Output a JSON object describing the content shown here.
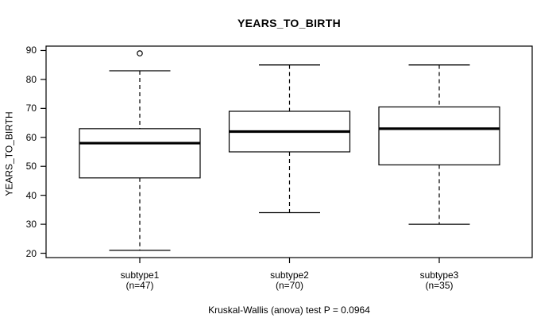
{
  "chart_data": {
    "type": "boxplot",
    "title": "YEARS_TO_BIRTH",
    "ylabel": "YEARS_TO_BIRTH",
    "xlabel": "",
    "caption": "Kruskal-Wallis (anova) test P = 0.0964",
    "p_value": 0.0964,
    "ylim": [
      18.5,
      91.5
    ],
    "yticks": [
      20,
      30,
      40,
      50,
      60,
      70,
      80,
      90
    ],
    "grid": false,
    "legend": "none",
    "groups": [
      {
        "label": "subtype1",
        "sublabel": "(n=47)",
        "n": 47,
        "stats": {
          "whisker_low": 21,
          "q1": 46,
          "median": 58,
          "q3": 63,
          "whisker_high": 83
        },
        "outliers": [
          89
        ]
      },
      {
        "label": "subtype2",
        "sublabel": "(n=70)",
        "n": 70,
        "stats": {
          "whisker_low": 34,
          "q1": 55,
          "median": 62,
          "q3": 69,
          "whisker_high": 85
        },
        "outliers": []
      },
      {
        "label": "subtype3",
        "sublabel": "(n=35)",
        "n": 35,
        "stats": {
          "whisker_low": 30,
          "q1": 50.5,
          "median": 63,
          "q3": 70.5,
          "whisker_high": 85
        },
        "outliers": []
      }
    ]
  }
}
